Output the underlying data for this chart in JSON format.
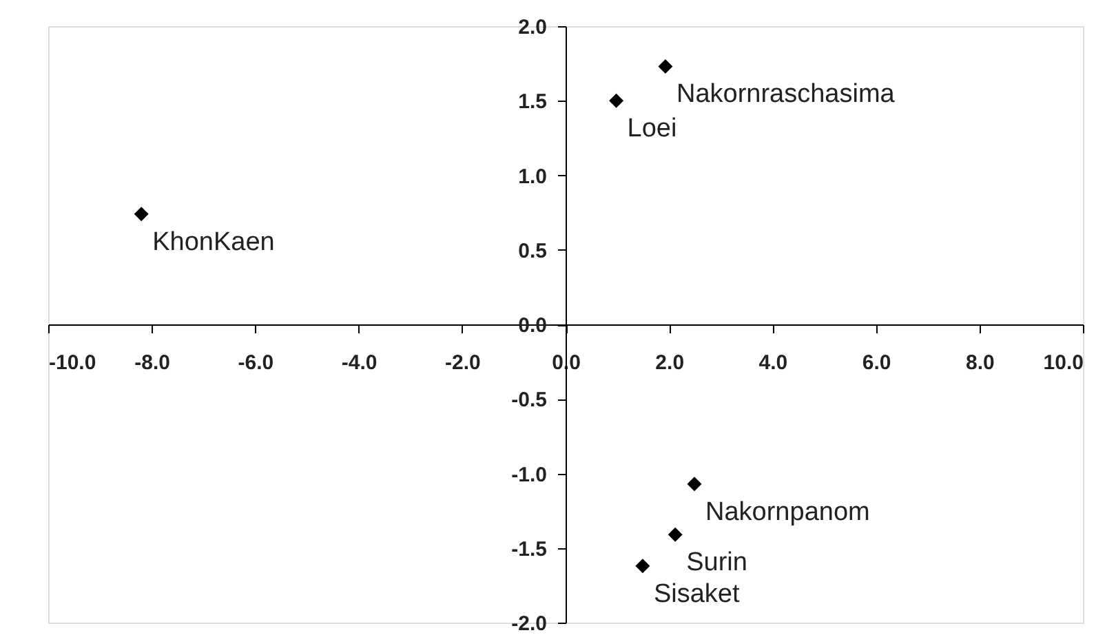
{
  "chart_data": {
    "type": "scatter",
    "marker": "diamond",
    "grid": false,
    "legend": false,
    "xlim": [
      -10,
      10
    ],
    "ylim": [
      -2,
      2
    ],
    "xticks": [
      {
        "value": -10,
        "label": "-10.0"
      },
      {
        "value": -8,
        "label": "-8.0"
      },
      {
        "value": -6,
        "label": "-6.0"
      },
      {
        "value": -4,
        "label": "-4.0"
      },
      {
        "value": -2,
        "label": "-2.0"
      },
      {
        "value": 0,
        "label": "0.0"
      },
      {
        "value": 2,
        "label": "2.0"
      },
      {
        "value": 4,
        "label": "4.0"
      },
      {
        "value": 6,
        "label": "6.0"
      },
      {
        "value": 8,
        "label": "8.0"
      },
      {
        "value": 10,
        "label": "10.0"
      }
    ],
    "yticks": [
      {
        "value": -2,
        "label": "-2.0"
      },
      {
        "value": -1.5,
        "label": "-1.5"
      },
      {
        "value": -1,
        "label": "-1.0"
      },
      {
        "value": -0.5,
        "label": "-0.5"
      },
      {
        "value": 0,
        "label": "0.0"
      },
      {
        "value": 0.5,
        "label": "0.5"
      },
      {
        "value": 1,
        "label": "1.0"
      },
      {
        "value": 1.5,
        "label": "1.5"
      },
      {
        "value": 2,
        "label": "2.0"
      }
    ],
    "series": [
      {
        "name": "KhonKaen",
        "color": "#000000",
        "x": [
          -8.2
        ],
        "values": [
          0.74
        ]
      },
      {
        "name": "Loei",
        "color": "#000000",
        "x": [
          0.98
        ],
        "values": [
          1.5
        ]
      },
      {
        "name": "Nakornraschasima",
        "color": "#000000",
        "x": [
          1.93
        ],
        "values": [
          1.73
        ]
      },
      {
        "name": "Nakornpanom",
        "color": "#000000",
        "x": [
          2.49
        ],
        "values": [
          -1.07
        ]
      },
      {
        "name": "Surin",
        "color": "#000000",
        "x": [
          2.12
        ],
        "values": [
          -1.41
        ]
      },
      {
        "name": "Sisaket",
        "color": "#000000",
        "x": [
          1.49
        ],
        "values": [
          -1.62
        ]
      }
    ]
  }
}
